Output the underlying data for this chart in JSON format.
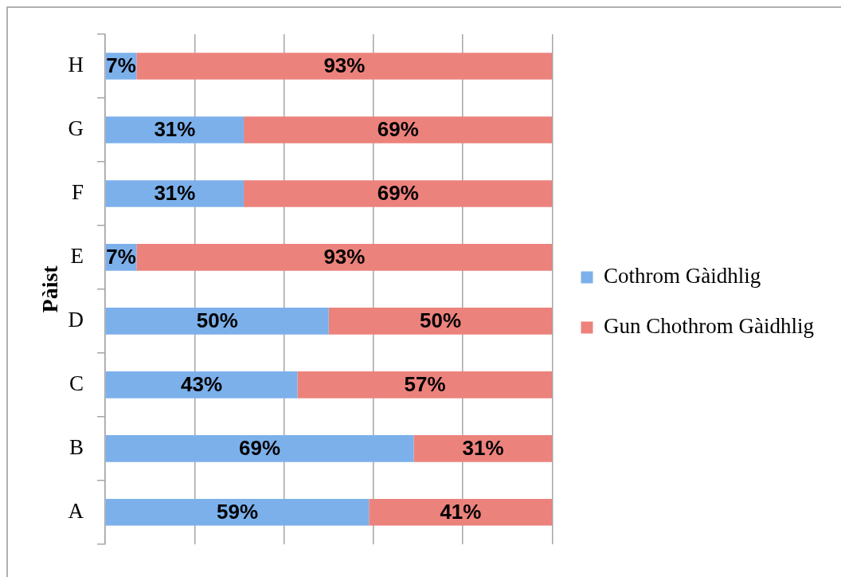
{
  "chart_data": {
    "type": "bar",
    "orientation": "horizontal",
    "stacked": true,
    "ylabel": "Pàist",
    "categories": [
      "H",
      "G",
      "F",
      "E",
      "D",
      "C",
      "B",
      "A"
    ],
    "series": [
      {
        "name": "Cothrom Gàidhlig",
        "color": "#7cb0eb",
        "values": [
          7,
          31,
          31,
          7,
          50,
          43,
          69,
          59
        ],
        "value_labels": [
          "7%",
          "31%",
          "31%",
          "7%",
          "50%",
          "43%",
          "69%",
          "59%"
        ]
      },
      {
        "name": "Gun Chothrom Gàidhlig",
        "color": "#ec827c",
        "values": [
          93,
          69,
          69,
          93,
          50,
          57,
          31,
          41
        ],
        "value_labels": [
          "93%",
          "69%",
          "69%",
          "93%",
          "50%",
          "57%",
          "31%",
          "41%"
        ]
      }
    ],
    "xlim": [
      0,
      100
    ],
    "xticks": [
      {
        "value": 0,
        "label": null
      },
      {
        "value": 20,
        "label": null
      },
      {
        "value": 40,
        "label": null
      },
      {
        "value": 60,
        "label": null
      },
      {
        "value": 80,
        "label": null
      },
      {
        "value": 100,
        "label": null
      }
    ],
    "tick_labels": "y",
    "grid": "x",
    "legend": "right"
  }
}
